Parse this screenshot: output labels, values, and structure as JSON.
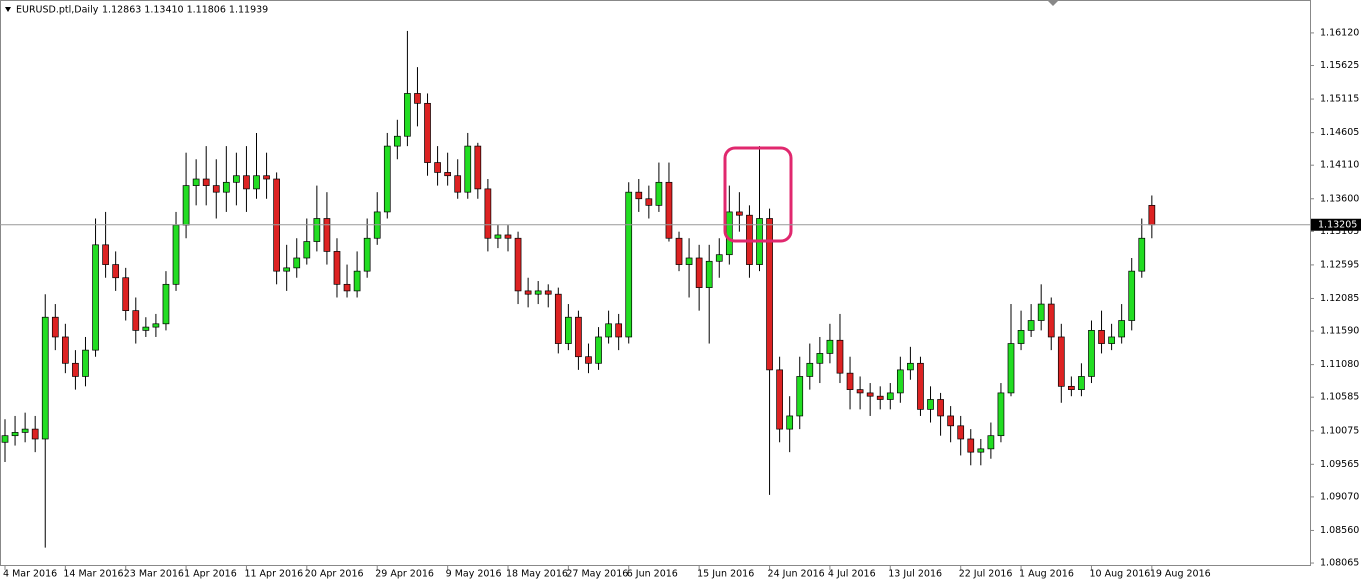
{
  "chart_data": {
    "type": "candlestick",
    "title": "EURUSD.ptl,Daily",
    "header_ohlc": "1.12863 1.13410 1.11806 1.11939",
    "categories": [
      "4 Mar 2016",
      null,
      null,
      null,
      null,
      null,
      "14 Mar 2016",
      null,
      null,
      null,
      null,
      null,
      "23 Mar 2016",
      null,
      null,
      null,
      null,
      null,
      "1 Apr 2016",
      null,
      null,
      null,
      null,
      null,
      "11 Apr 2016",
      null,
      null,
      null,
      null,
      null,
      "20 Apr 2016",
      null,
      null,
      null,
      null,
      null,
      null,
      "29 Apr 2016",
      null,
      null,
      null,
      null,
      null,
      null,
      "9 May 2016",
      null,
      null,
      null,
      null,
      null,
      "18 May 2016",
      null,
      null,
      null,
      null,
      null,
      "27 May 2016",
      null,
      null,
      null,
      null,
      null,
      "6 Jun 2016",
      null,
      null,
      null,
      null,
      null,
      null,
      "15 Jun 2016",
      null,
      null,
      null,
      null,
      null,
      null,
      "24 Jun 2016",
      null,
      null,
      null,
      null,
      null,
      "4 Jul 2016",
      null,
      null,
      null,
      null,
      null,
      "13 Jul 2016",
      null,
      null,
      null,
      null,
      null,
      null,
      "22 Jul 2016",
      null,
      null,
      null,
      null,
      null,
      "1 Aug 2016",
      null,
      null,
      null,
      null,
      null,
      null,
      "10 Aug 2016",
      null,
      null,
      null,
      null,
      null,
      "19 Aug 2016"
    ],
    "open": [
      1.099,
      1.1,
      1.1005,
      1.101,
      1.0995,
      1.118,
      1.115,
      1.111,
      1.109,
      1.113,
      1.129,
      1.126,
      1.124,
      1.119,
      1.116,
      1.1165,
      1.117,
      1.123,
      1.132,
      1.138,
      1.139,
      1.138,
      1.137,
      1.1385,
      1.1395,
      1.1375,
      1.1395,
      1.139,
      1.125,
      1.1255,
      1.127,
      1.1295,
      1.133,
      1.128,
      1.123,
      1.122,
      1.125,
      1.13,
      1.134,
      1.144,
      1.1455,
      1.152,
      1.1505,
      1.1415,
      1.14,
      1.1395,
      1.137,
      1.144,
      1.1375,
      1.13,
      1.1305,
      1.13,
      1.122,
      1.1215,
      1.122,
      1.1215,
      1.114,
      1.118,
      1.112,
      1.111,
      1.115,
      1.117,
      1.115,
      1.137,
      1.136,
      1.135,
      1.1385,
      1.13,
      1.126,
      1.127,
      1.1225,
      1.1265,
      1.1275,
      1.134,
      1.1335,
      1.126,
      1.133,
      1.11,
      1.101,
      1.103,
      1.109,
      1.111,
      1.1125,
      1.1145,
      1.1095,
      1.107,
      1.1065,
      1.106,
      1.1055,
      1.1065,
      1.11,
      1.111,
      1.104,
      1.1055,
      1.103,
      1.1015,
      1.0995,
      1.0975,
      1.098,
      1.1,
      1.1065,
      1.114,
      1.116,
      1.1175,
      1.12,
      1.115,
      1.1075,
      1.107,
      1.109,
      1.116,
      1.114,
      1.115,
      1.1175,
      1.125,
      1.135
    ],
    "high": [
      1.1025,
      1.103,
      1.1035,
      1.103,
      1.1215,
      1.12,
      1.117,
      1.113,
      1.115,
      1.133,
      1.134,
      1.128,
      1.1255,
      1.121,
      1.118,
      1.1185,
      1.125,
      1.134,
      1.143,
      1.142,
      1.144,
      1.142,
      1.144,
      1.143,
      1.144,
      1.146,
      1.143,
      1.14,
      1.129,
      1.13,
      1.133,
      1.138,
      1.137,
      1.13,
      1.126,
      1.128,
      1.133,
      1.137,
      1.146,
      1.148,
      1.1615,
      1.156,
      1.152,
      1.144,
      1.143,
      1.142,
      1.146,
      1.1445,
      1.139,
      1.132,
      1.132,
      1.131,
      1.124,
      1.1235,
      1.123,
      1.1225,
      1.12,
      1.119,
      1.114,
      1.1165,
      1.119,
      1.1185,
      1.1385,
      1.139,
      1.138,
      1.1415,
      1.1415,
      1.131,
      1.13,
      1.129,
      1.129,
      1.13,
      1.138,
      1.137,
      1.135,
      1.144,
      1.1345,
      1.112,
      1.106,
      1.112,
      1.114,
      1.115,
      1.117,
      1.1185,
      1.112,
      1.109,
      1.108,
      1.1075,
      1.108,
      1.112,
      1.1135,
      1.112,
      1.1075,
      1.1065,
      1.1045,
      1.103,
      1.101,
      1.0995,
      1.102,
      1.108,
      1.12,
      1.119,
      1.12,
      1.123,
      1.121,
      1.117,
      1.109,
      1.111,
      1.1175,
      1.119,
      1.117,
      1.12,
      1.127,
      1.133,
      1.1365
    ],
    "low": [
      1.096,
      1.0985,
      1.099,
      1.0975,
      1.083,
      1.113,
      1.1095,
      1.107,
      1.1075,
      1.112,
      1.124,
      1.122,
      1.1175,
      1.114,
      1.115,
      1.115,
      1.116,
      1.122,
      1.13,
      1.135,
      1.135,
      1.133,
      1.134,
      1.135,
      1.134,
      1.136,
      1.136,
      1.123,
      1.122,
      1.124,
      1.126,
      1.128,
      1.126,
      1.121,
      1.121,
      1.121,
      1.124,
      1.129,
      1.133,
      1.142,
      1.144,
      1.147,
      1.1395,
      1.138,
      1.138,
      1.136,
      1.136,
      1.136,
      1.128,
      1.1285,
      1.128,
      1.12,
      1.1195,
      1.12,
      1.1195,
      1.1125,
      1.113,
      1.11,
      1.1095,
      1.11,
      1.114,
      1.113,
      1.114,
      1.134,
      1.133,
      1.134,
      1.1295,
      1.125,
      1.121,
      1.119,
      1.114,
      1.124,
      1.126,
      1.131,
      1.124,
      1.125,
      1.091,
      1.099,
      1.0975,
      1.101,
      1.107,
      1.108,
      1.111,
      1.108,
      1.104,
      1.104,
      1.103,
      1.104,
      1.104,
      1.105,
      1.1085,
      1.103,
      1.102,
      1.1,
      1.099,
      1.097,
      1.0955,
      1.0955,
      1.0965,
      1.099,
      1.106,
      1.113,
      1.115,
      1.116,
      1.113,
      1.105,
      1.106,
      1.106,
      1.108,
      1.1125,
      1.113,
      1.114,
      1.116,
      1.124,
      1.13
    ],
    "close": [
      1.1,
      1.1005,
      1.101,
      1.0995,
      1.118,
      1.115,
      1.111,
      1.109,
      1.113,
      1.129,
      1.126,
      1.124,
      1.119,
      1.116,
      1.1165,
      1.117,
      1.123,
      1.132,
      1.138,
      1.139,
      1.138,
      1.137,
      1.1385,
      1.1395,
      1.1375,
      1.1395,
      1.139,
      1.125,
      1.1255,
      1.127,
      1.1295,
      1.133,
      1.128,
      1.123,
      1.122,
      1.125,
      1.13,
      1.134,
      1.144,
      1.1455,
      1.152,
      1.1505,
      1.1415,
      1.14,
      1.1395,
      1.137,
      1.144,
      1.1375,
      1.13,
      1.1305,
      1.13,
      1.122,
      1.1215,
      1.122,
      1.1215,
      1.114,
      1.118,
      1.112,
      1.111,
      1.115,
      1.117,
      1.115,
      1.137,
      1.136,
      1.135,
      1.1385,
      1.13,
      1.126,
      1.127,
      1.1225,
      1.1265,
      1.1275,
      1.134,
      1.1335,
      1.126,
      1.133,
      1.11,
      1.101,
      1.103,
      1.109,
      1.111,
      1.1125,
      1.1145,
      1.1095,
      1.107,
      1.1065,
      1.106,
      1.1055,
      1.1065,
      1.11,
      1.111,
      1.104,
      1.1055,
      1.103,
      1.1015,
      1.0995,
      1.0975,
      1.098,
      1.1,
      1.1065,
      1.114,
      1.116,
      1.1175,
      1.12,
      1.115,
      1.1075,
      1.107,
      1.109,
      1.116,
      1.114,
      1.115,
      1.1175,
      1.125,
      1.13,
      1.13205
    ],
    "up_color": "#22dd22",
    "down_color": "#dd2222",
    "current_price": 1.13205,
    "ylim": [
      1.0802,
      1.1662
    ],
    "yticks": [
      {
        "value": 1.1612,
        "label": "1.16120"
      },
      {
        "value": 1.15625,
        "label": "1.15625"
      },
      {
        "value": 1.15115,
        "label": "1.15115"
      },
      {
        "value": 1.14605,
        "label": "1.14605"
      },
      {
        "value": 1.1411,
        "label": "1.14110"
      },
      {
        "value": 1.136,
        "label": "1.13600"
      },
      {
        "value": 1.13105,
        "label": "1.13105"
      },
      {
        "value": 1.12595,
        "label": "1.12595"
      },
      {
        "value": 1.12085,
        "label": "1.12085"
      },
      {
        "value": 1.1159,
        "label": "1.11590"
      },
      {
        "value": 1.1108,
        "label": "1.11080"
      },
      {
        "value": 1.10585,
        "label": "1.10585"
      },
      {
        "value": 1.10075,
        "label": "1.10075"
      },
      {
        "value": 1.09565,
        "label": "1.09565"
      },
      {
        "value": 1.0907,
        "label": "1.09070"
      },
      {
        "value": 1.0856,
        "label": "1.08560"
      },
      {
        "value": 1.08065,
        "label": "1.08065"
      }
    ],
    "grid": false
  }
}
